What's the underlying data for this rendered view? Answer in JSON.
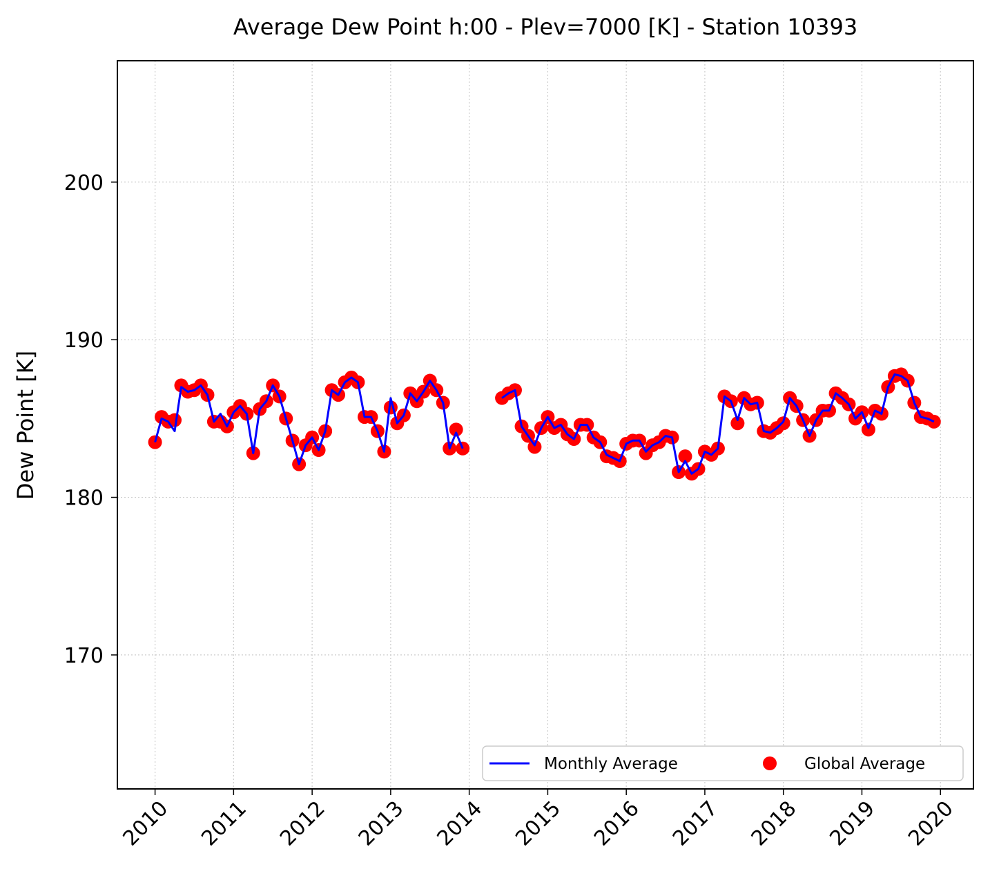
{
  "chart_data": {
    "type": "line",
    "title": "Average Dew Point h:00 - Plev=7000 [K] - Station 10393",
    "xlabel": "",
    "ylabel": "Dew Point [K]",
    "xlim": [
      2009.52,
      2020.42
    ],
    "ylim": [
      161.5,
      207.7
    ],
    "x_ticks": [
      "2010",
      "2011",
      "2012",
      "2013",
      "2014",
      "2015",
      "2016",
      "2017",
      "2018",
      "2019",
      "2020"
    ],
    "y_ticks": [
      170,
      180,
      190,
      200
    ],
    "grid": true,
    "legend": {
      "placement": "lower-right",
      "entries": [
        "Monthly Average",
        "Global Average"
      ]
    },
    "colors": {
      "monthly": "#0000ff",
      "global": "#ff0000"
    },
    "x": [
      2010.0,
      2010.083,
      2010.167,
      2010.25,
      2010.333,
      2010.417,
      2010.5,
      2010.583,
      2010.667,
      2010.75,
      2010.833,
      2010.917,
      2011.0,
      2011.083,
      2011.167,
      2011.25,
      2011.333,
      2011.417,
      2011.5,
      2011.583,
      2011.667,
      2011.75,
      2011.833,
      2011.917,
      2012.0,
      2012.083,
      2012.167,
      2012.25,
      2012.333,
      2012.417,
      2012.5,
      2012.583,
      2012.667,
      2012.75,
      2012.833,
      2012.917,
      2013.0,
      2013.083,
      2013.167,
      2013.25,
      2013.333,
      2013.417,
      2013.5,
      2013.583,
      2013.667,
      2013.75,
      2013.833,
      2013.917,
      2014.0,
      2014.083,
      2014.167,
      2014.25,
      2014.333,
      2014.417,
      2014.5,
      2014.583,
      2014.667,
      2014.75,
      2014.833,
      2014.917,
      2015.0,
      2015.083,
      2015.167,
      2015.25,
      2015.333,
      2015.417,
      2015.5,
      2015.583,
      2015.667,
      2015.75,
      2015.833,
      2015.917,
      2016.0,
      2016.083,
      2016.167,
      2016.25,
      2016.333,
      2016.417,
      2016.5,
      2016.583,
      2016.667,
      2016.75,
      2016.833,
      2016.917,
      2017.0,
      2017.083,
      2017.167,
      2017.25,
      2017.333,
      2017.417,
      2017.5,
      2017.583,
      2017.667,
      2017.75,
      2017.833,
      2017.917,
      2018.0,
      2018.083,
      2018.167,
      2018.25,
      2018.333,
      2018.417,
      2018.5,
      2018.583,
      2018.667,
      2018.75,
      2018.833,
      2018.917,
      2019.0,
      2019.083,
      2019.167,
      2019.25,
      2019.333,
      2019.417,
      2019.5,
      2019.583,
      2019.667,
      2019.75,
      2019.833,
      2019.917
    ],
    "series": [
      {
        "name": "Monthly Average",
        "values": [
          183.5,
          185.0,
          184.8,
          184.2,
          187.0,
          186.7,
          186.8,
          187.1,
          186.5,
          184.8,
          185.3,
          184.5,
          185.4,
          185.8,
          185.3,
          182.8,
          185.6,
          186.1,
          187.1,
          186.4,
          185.0,
          183.6,
          182.1,
          183.3,
          183.8,
          183.0,
          184.2,
          186.8,
          186.5,
          187.3,
          187.6,
          187.3,
          185.1,
          185.1,
          184.2,
          182.9,
          186.3,
          184.7,
          185.2,
          186.6,
          186.1,
          186.7,
          187.4,
          186.8,
          186.0,
          183.1,
          184.1,
          183.1,
          null,
          null,
          null,
          null,
          null,
          186.3,
          186.6,
          186.8,
          184.5,
          183.9,
          183.3,
          184.4,
          185.1,
          184.4,
          184.6,
          184.0,
          183.7,
          184.6,
          184.6,
          183.8,
          183.5,
          182.7,
          182.5,
          182.3,
          183.4,
          183.6,
          183.6,
          182.9,
          183.3,
          183.5,
          183.9,
          183.8,
          181.6,
          182.3,
          181.5,
          181.8,
          182.9,
          182.7,
          183.1,
          186.4,
          186.1,
          184.9,
          186.3,
          185.9,
          186.0,
          184.2,
          184.1,
          184.4,
          184.8,
          186.3,
          185.8,
          184.9,
          183.9,
          184.9,
          185.5,
          185.5,
          186.6,
          186.3,
          185.9,
          185.0,
          185.4,
          184.4,
          185.5,
          185.3,
          187.0,
          187.8,
          187.7,
          187.4,
          186.0,
          185.1,
          185.0,
          184.8
        ]
      },
      {
        "name": "Global Average",
        "values": [
          183.5,
          185.1,
          184.8,
          184.9,
          187.1,
          186.7,
          186.8,
          187.1,
          186.5,
          184.8,
          184.8,
          184.5,
          185.4,
          185.8,
          185.3,
          182.8,
          185.6,
          186.1,
          187.1,
          186.4,
          185.0,
          183.6,
          182.1,
          183.3,
          183.8,
          183.0,
          184.2,
          186.8,
          186.5,
          187.3,
          187.6,
          187.3,
          185.1,
          185.1,
          184.2,
          182.9,
          185.7,
          184.7,
          185.2,
          186.6,
          186.1,
          186.7,
          187.4,
          186.8,
          186.0,
          183.1,
          184.3,
          183.1,
          null,
          null,
          null,
          null,
          null,
          186.3,
          186.6,
          186.8,
          184.5,
          183.9,
          183.2,
          184.4,
          185.1,
          184.4,
          184.6,
          184.0,
          183.7,
          184.6,
          184.6,
          183.8,
          183.5,
          182.6,
          182.5,
          182.3,
          183.4,
          183.6,
          183.6,
          182.8,
          183.3,
          183.5,
          183.9,
          183.8,
          181.6,
          182.6,
          181.5,
          181.8,
          182.9,
          182.7,
          183.1,
          186.4,
          186.1,
          184.7,
          186.3,
          185.9,
          186.0,
          184.2,
          184.1,
          184.4,
          184.7,
          186.3,
          185.8,
          184.9,
          183.9,
          184.9,
          185.5,
          185.5,
          186.6,
          186.3,
          185.9,
          185.0,
          185.4,
          184.3,
          185.5,
          185.3,
          187.0,
          187.7,
          187.8,
          187.4,
          186.0,
          185.1,
          185.0,
          184.8
        ]
      }
    ]
  }
}
